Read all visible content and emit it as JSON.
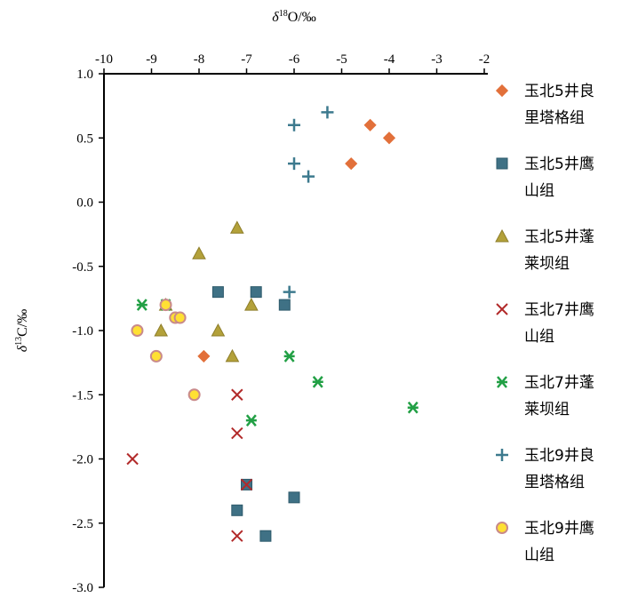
{
  "chart_data": {
    "type": "scatter",
    "title": "",
    "xlabel": {
      "greek": "δ",
      "sup": "18",
      "rest": "O/‰"
    },
    "ylabel": {
      "greek": "δ",
      "sup": "13",
      "rest": "C/‰"
    },
    "xlim": [
      -10,
      -2
    ],
    "ylim": [
      -3.0,
      1.0
    ],
    "x_ticks": [
      -10,
      -9,
      -8,
      -7,
      -6,
      -5,
      -4,
      -3,
      -2
    ],
    "x_tick_labels": [
      "-10",
      "-9",
      "-8",
      "-7",
      "-6",
      "-5",
      "-4",
      "-3",
      "-2"
    ],
    "y_ticks": [
      1.0,
      0.5,
      0.0,
      -0.5,
      -1.0,
      -1.5,
      -2.0,
      -2.5,
      -3.0
    ],
    "y_tick_labels": [
      "1.0",
      "0.5",
      "0.0",
      "-0.5",
      "-1.0",
      "-1.5",
      "-2.0",
      "-2.5",
      "-3.0"
    ],
    "x_axis_position": "top",
    "grid": false,
    "legend_position": "right",
    "series": [
      {
        "name": "玉北5井良里塔格组",
        "legend_lines": [
          "玉北5井良",
          "里塔格组"
        ],
        "marker": "diamond",
        "color": "#E2703A",
        "stroke": "#E2703A",
        "points": [
          [
            -4.4,
            0.6
          ],
          [
            -4.0,
            0.5
          ],
          [
            -4.8,
            0.3
          ],
          [
            -7.9,
            -1.2
          ]
        ]
      },
      {
        "name": "玉北5井鹰山组",
        "legend_lines": [
          "玉北5井鹰",
          "山组"
        ],
        "marker": "square",
        "color": "#3F7185",
        "stroke": "#2E5A6B",
        "points": [
          [
            -7.6,
            -0.7
          ],
          [
            -6.8,
            -0.7
          ],
          [
            -6.2,
            -0.8
          ],
          [
            -7.0,
            -2.2
          ],
          [
            -6.0,
            -2.3
          ],
          [
            -7.2,
            -2.4
          ],
          [
            -6.6,
            -2.6
          ]
        ]
      },
      {
        "name": "玉北5井蓬莱坝组",
        "legend_lines": [
          "玉北5井蓬",
          "莱坝组"
        ],
        "marker": "triangle",
        "color": "#B3A13A",
        "stroke": "#8E7E2A",
        "points": [
          [
            -7.2,
            -0.2
          ],
          [
            -8.0,
            -0.4
          ],
          [
            -8.7,
            -0.8
          ],
          [
            -6.9,
            -0.8
          ],
          [
            -8.8,
            -1.0
          ],
          [
            -7.6,
            -1.0
          ],
          [
            -7.3,
            -1.2
          ]
        ]
      },
      {
        "name": "玉北7井鹰山组",
        "legend_lines": [
          "玉北7井鹰",
          "山组"
        ],
        "marker": "x",
        "color": "#B22A2A",
        "stroke": "#B22A2A",
        "points": [
          [
            -7.2,
            -1.5
          ],
          [
            -7.2,
            -1.8
          ],
          [
            -9.4,
            -2.0
          ],
          [
            -7.0,
            -2.2
          ],
          [
            -7.2,
            -2.6
          ]
        ]
      },
      {
        "name": "玉北7井蓬莱坝组",
        "legend_lines": [
          "玉北7井蓬",
          "莱坝组"
        ],
        "marker": "asterisk",
        "color": "#22A045",
        "stroke": "#22A045",
        "points": [
          [
            -9.2,
            -0.8
          ],
          [
            -8.7,
            -0.8
          ],
          [
            -6.1,
            -1.2
          ],
          [
            -5.5,
            -1.4
          ],
          [
            -6.9,
            -1.7
          ],
          [
            -3.5,
            -1.6
          ]
        ]
      },
      {
        "name": "玉北9井良里塔格组",
        "legend_lines": [
          "玉北9井良",
          "里塔格组"
        ],
        "marker": "plus",
        "color": "#3D7A8E",
        "stroke": "#3D7A8E",
        "points": [
          [
            -5.3,
            0.7
          ],
          [
            -6.0,
            0.6
          ],
          [
            -6.0,
            0.3
          ],
          [
            -5.7,
            0.2
          ],
          [
            -6.1,
            -0.7
          ]
        ]
      },
      {
        "name": "玉北9井鹰山组",
        "legend_lines": [
          "玉北9井鹰",
          "山组"
        ],
        "marker": "circle",
        "color": "#FFE033",
        "stroke": "#C98A8A",
        "points": [
          [
            -8.7,
            -0.8
          ],
          [
            -8.5,
            -0.9
          ],
          [
            -8.4,
            -0.9
          ],
          [
            -9.3,
            -1.0
          ],
          [
            -8.9,
            -1.2
          ],
          [
            -8.1,
            -1.5
          ]
        ]
      }
    ]
  }
}
